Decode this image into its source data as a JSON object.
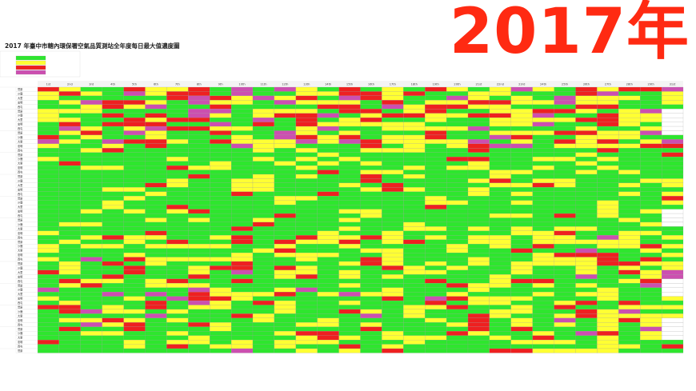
{
  "year_banner": "2017年",
  "sheet_title": "2017 年臺中市轄內環保署空氣品質測站全年度每日最大值濃度圖",
  "colors": {
    "good": "#2ee62e",
    "moderate": "#ffff33",
    "unhealthy_sensitive": "#ff9a1f",
    "unhealthy": "#ee2020",
    "very_unhealthy": "#cc4fb0",
    "empty": "#ffffff"
  },
  "day_headers": [
    "1st",
    "2nd",
    "3rd",
    "4th",
    "5th",
    "6th",
    "7th",
    "8th",
    "9th",
    "10th",
    "11th",
    "12th",
    "13th",
    "14th",
    "15th",
    "16th",
    "17th",
    "18th",
    "19th",
    "20th",
    "21st",
    "22nd",
    "23rd",
    "24th",
    "25th",
    "26th",
    "27th",
    "28th",
    "29th",
    "31st"
  ],
  "station_labels": [
    "豐原",
    "沙鹿",
    "大里",
    "忠明",
    "西屯"
  ]
}
